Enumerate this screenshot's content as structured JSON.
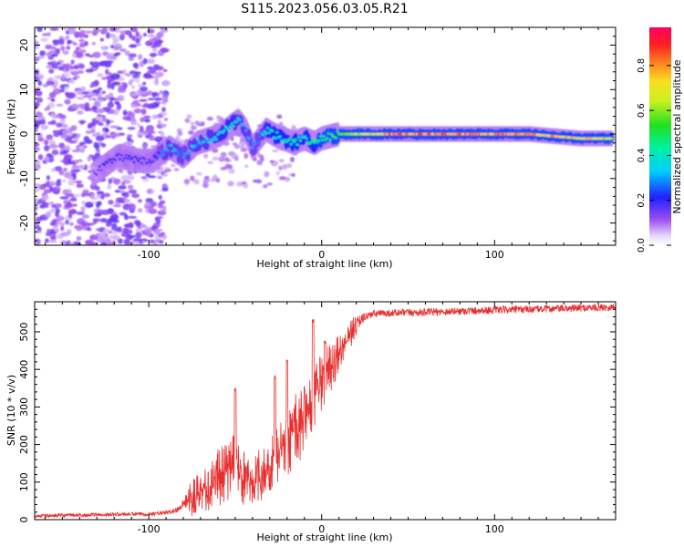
{
  "title": "S115.2023.056.03.05.R21",
  "chart_data": [
    {
      "type": "heatmap",
      "xlabel": "Height of straight line (km)",
      "ylabel": "Frequency (Hz)",
      "xlim": [
        -166,
        170
      ],
      "ylim": [
        -25,
        24
      ],
      "xticks": [
        -100,
        0,
        100
      ],
      "yticks": [
        -20,
        -10,
        0,
        10,
        20
      ],
      "grid": false,
      "colorbar": {
        "label": "Normalized spectral amplitude",
        "range": [
          0,
          0.97
        ],
        "ticks": [
          0.0,
          0.2,
          0.4,
          0.6,
          0.8
        ]
      },
      "series": [
        {
          "role": "noise-dominated",
          "x_range": [
            -166,
            -90
          ],
          "frequency_range": [
            -25,
            24
          ],
          "amplitude": 0.15
        },
        {
          "role": "signal-ridge",
          "x": [
            -132,
            -125,
            -118,
            -105,
            -98,
            -88,
            -80,
            -72,
            -64,
            -58,
            -52,
            -48,
            -44,
            -40,
            -36,
            -32,
            -28,
            -22,
            -16,
            -10,
            -4,
            0,
            10,
            40,
            80,
            120,
            150,
            168
          ],
          "frequency": [
            -9,
            -7,
            -5,
            -6,
            -6,
            -3,
            -5,
            -2,
            -1,
            0,
            2,
            3,
            1,
            -3,
            -1,
            1,
            0,
            -1,
            -2,
            -1,
            -2,
            -1,
            0,
            0,
            0,
            0,
            -1,
            -1
          ],
          "amplitude": [
            0.15,
            0.2,
            0.2,
            0.2,
            0.2,
            0.35,
            0.3,
            0.35,
            0.35,
            0.4,
            0.4,
            0.35,
            0.35,
            0.3,
            0.3,
            0.4,
            0.45,
            0.45,
            0.45,
            0.45,
            0.45,
            0.5,
            0.55,
            0.85,
            0.85,
            0.85,
            0.75,
            0.7
          ]
        }
      ]
    },
    {
      "type": "line",
      "xlabel": "Height of straight line (km)",
      "ylabel": "SNR (10 * v/v)",
      "xlim": [
        -166,
        170
      ],
      "ylim": [
        0,
        580
      ],
      "xticks": [
        -100,
        0,
        100
      ],
      "yticks": [
        0,
        100,
        200,
        300,
        400,
        500
      ],
      "grid": false,
      "series": [
        {
          "color": "#e83030",
          "x": [
            -166,
            -140,
            -120,
            -100,
            -90,
            -84,
            -80,
            -75,
            -70,
            -65,
            -60,
            -55,
            -50,
            -45,
            -40,
            -35,
            -30,
            -25,
            -20,
            -15,
            -10,
            -5,
            0,
            5,
            10,
            15,
            20,
            25,
            30,
            40,
            60,
            80,
            100,
            120,
            140,
            160,
            170
          ],
          "y": [
            10,
            12,
            14,
            15,
            18,
            25,
            45,
            60,
            75,
            90,
            110,
            130,
            140,
            110,
            105,
            120,
            140,
            180,
            200,
            240,
            270,
            320,
            360,
            400,
            440,
            480,
            520,
            540,
            548,
            550,
            552,
            555,
            558,
            560,
            562,
            565,
            566
          ],
          "noise_amplitude": [
            5,
            5,
            5,
            5,
            5,
            8,
            10,
            40,
            40,
            50,
            60,
            70,
            60,
            60,
            50,
            50,
            50,
            60,
            60,
            70,
            70,
            60,
            60,
            50,
            40,
            30,
            20,
            12,
            10,
            10,
            10,
            10,
            10,
            10,
            10,
            10,
            10
          ],
          "peaks": [
            {
              "x": -50,
              "y": 350
            },
            {
              "x": -27,
              "y": 385
            },
            {
              "x": -20,
              "y": 430
            },
            {
              "x": -5,
              "y": 535
            },
            {
              "x": 2,
              "y": 480
            }
          ]
        }
      ]
    }
  ]
}
